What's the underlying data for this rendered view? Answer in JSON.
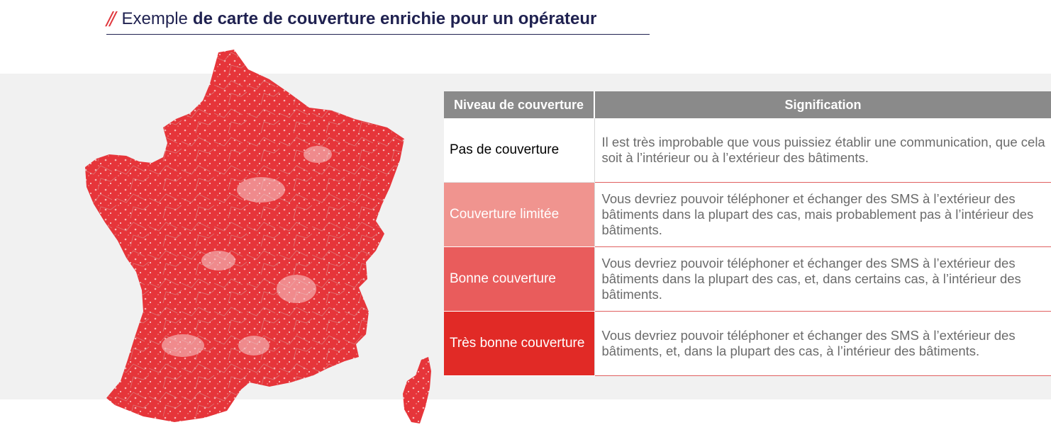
{
  "heading": {
    "prefix": "Exemple",
    "bold": "de carte de couverture enrichie pour un opérateur"
  },
  "colors": {
    "accent": "#e0383e",
    "navy": "#1f2150",
    "header_gray": "#8a8a8a",
    "no_coverage": "#ffffff",
    "limited": "#f0948f",
    "good": "#e95c5c",
    "very_good": "#e12a26"
  },
  "table": {
    "headers": [
      "Niveau de couverture",
      "Signification"
    ],
    "rows": [
      {
        "level": "Pas de couverture",
        "meaning": "Il est très improbable que vous puissiez établir une communication, que cela soit à l’intérieur ou à l’extérieur des bâtiments."
      },
      {
        "level": "Couverture limitée",
        "meaning": "Vous devriez pouvoir téléphoner et échanger des SMS à l’extérieur des bâtiments dans la plupart des cas, mais probablement pas à l’intérieur des bâtiments."
      },
      {
        "level": "Bonne couverture",
        "meaning": "Vous devriez pouvoir téléphoner et échanger des SMS à l’extérieur des bâtiments dans la plupart des cas, et, dans certains cas, à l’intérieur des bâtiments."
      },
      {
        "level": "Très bonne couverture",
        "meaning": "Vous devriez pouvoir téléphoner et échanger des SMS à l’extérieur des bâtiments, et, dans la plupart des cas, à l’intérieur des bâtiments."
      }
    ]
  }
}
